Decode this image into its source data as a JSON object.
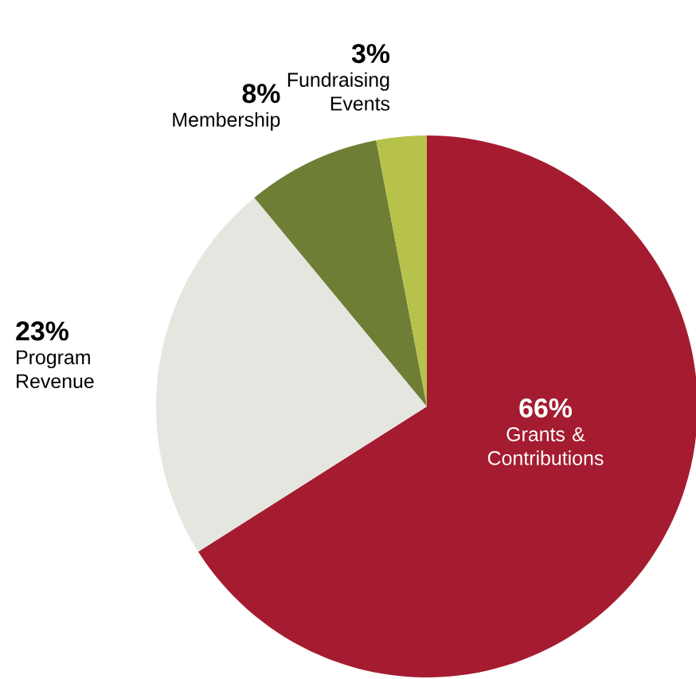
{
  "chart_data": {
    "type": "pie",
    "categories": [
      "Grants & Contributions",
      "Program Revenue",
      "Membership",
      "Fundraising Events"
    ],
    "values": [
      66,
      23,
      8,
      3
    ],
    "colors": [
      "#a51c30",
      "#e6e6e0",
      "#6e7f35",
      "#b6c24a"
    ],
    "value_labels": [
      "66%",
      "23%",
      "8%",
      "3%"
    ]
  }
}
